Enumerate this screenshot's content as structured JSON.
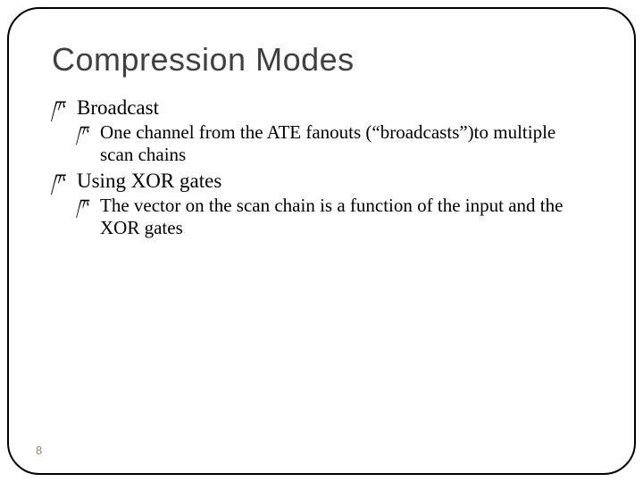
{
  "slide": {
    "title": "Compression  Modes",
    "bullets": [
      {
        "level": 1,
        "text": "Broadcast"
      },
      {
        "level": 2,
        "text": "One channel from the ATE fanouts (“broadcasts”)to multiple scan chains"
      },
      {
        "level": 1,
        "text": "Using XOR gates"
      },
      {
        "level": 2,
        "text": "The vector on the scan chain is a function of the input and the XOR gates"
      }
    ],
    "pageNumber": "8",
    "colors": {
      "title": "#404040",
      "body": "#000000",
      "border": "#000000",
      "pageNumber": "#9a8866",
      "background": "#ffffff"
    },
    "fonts": {
      "title": "Arial",
      "body": "Times New Roman",
      "title_size_pt": 36,
      "l1_size_pt": 23,
      "l2_size_pt": 21
    },
    "bullet_glyph": "ཫ"
  }
}
